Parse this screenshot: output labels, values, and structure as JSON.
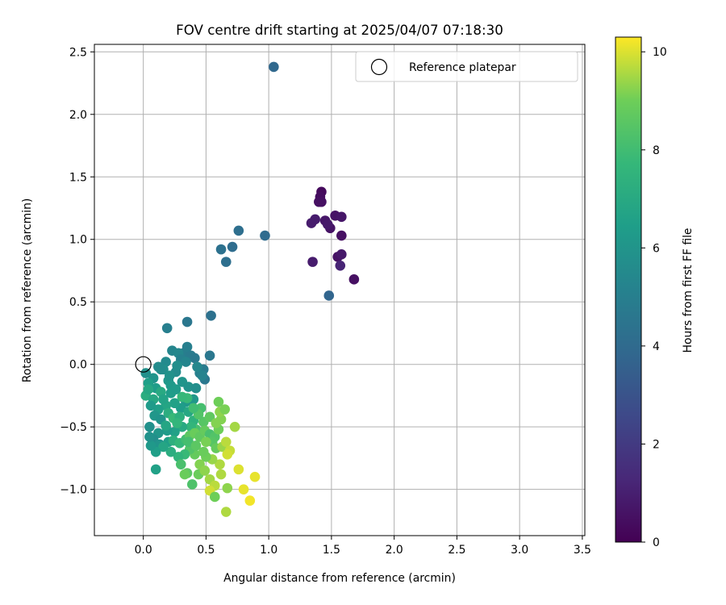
{
  "chart_data": {
    "type": "scatter",
    "title": "FOV centre drift starting at 2025/04/07 07:18:30",
    "xlabel": "Angular distance from reference (arcmin)",
    "ylabel": "Rotation from reference (arcmin)",
    "xlim": [
      -0.39,
      3.52
    ],
    "ylim": [
      -1.37,
      2.56
    ],
    "xticks": [
      0.0,
      0.5,
      1.0,
      1.5,
      2.0,
      2.5,
      3.0,
      3.5
    ],
    "xtick_labels": [
      "0.0",
      "0.5",
      "1.0",
      "1.5",
      "2.0",
      "2.5",
      "3.0",
      "3.5"
    ],
    "yticks": [
      -1.0,
      -0.5,
      0.0,
      0.5,
      1.0,
      1.5,
      2.0,
      2.5
    ],
    "ytick_labels": [
      "−1.0",
      "−0.5",
      "0.0",
      "0.5",
      "1.0",
      "1.5",
      "2.0",
      "2.5"
    ],
    "grid": true,
    "legend": {
      "placement": "top-right",
      "entries": [
        "Reference platepar"
      ]
    },
    "reference_point": {
      "x": 0.0,
      "y": 0.0
    },
    "colorbar": {
      "label": "Hours from first FF file",
      "min": 0,
      "max": 10.3,
      "colormap": "viridis",
      "ticks": [
        0,
        2,
        4,
        6,
        8,
        10
      ],
      "tick_labels": [
        "0",
        "2",
        "4",
        "6",
        "8",
        "10"
      ]
    },
    "points": [
      [
        1.42,
        1.38,
        0.3
      ],
      [
        1.41,
        1.34,
        0.4
      ],
      [
        1.4,
        1.3,
        0.5
      ],
      [
        1.42,
        1.3,
        0.5
      ],
      [
        1.53,
        1.19,
        0.6
      ],
      [
        1.58,
        1.18,
        0.7
      ],
      [
        1.37,
        1.16,
        0.9
      ],
      [
        1.34,
        1.13,
        0.9
      ],
      [
        1.45,
        1.15,
        0.7
      ],
      [
        1.49,
        1.09,
        0.6
      ],
      [
        1.47,
        1.12,
        0.8
      ],
      [
        1.58,
        1.03,
        0.5
      ],
      [
        1.55,
        0.86,
        0.6
      ],
      [
        1.58,
        0.88,
        0.8
      ],
      [
        1.57,
        0.79,
        1.2
      ],
      [
        1.35,
        0.82,
        0.9
      ],
      [
        1.68,
        0.68,
        0.5
      ],
      [
        1.48,
        0.55,
        3.8
      ],
      [
        1.04,
        2.38,
        3.9
      ],
      [
        0.97,
        1.03,
        4.0
      ],
      [
        0.76,
        1.07,
        4.2
      ],
      [
        0.71,
        0.94,
        4.1
      ],
      [
        0.62,
        0.92,
        4.3
      ],
      [
        0.66,
        0.82,
        4.2
      ],
      [
        0.54,
        0.39,
        4.3
      ],
      [
        0.35,
        0.34,
        4.6
      ],
      [
        0.19,
        0.29,
        5.0
      ],
      [
        0.53,
        0.07,
        4.6
      ],
      [
        0.32,
        0.09,
        4.9
      ],
      [
        0.35,
        0.14,
        5.0
      ],
      [
        0.23,
        0.11,
        5.3
      ],
      [
        0.28,
        0.09,
        5.4
      ],
      [
        0.38,
        0.07,
        4.8
      ],
      [
        0.41,
        0.05,
        4.7
      ],
      [
        0.48,
        -0.04,
        4.8
      ],
      [
        0.49,
        -0.12,
        4.6
      ],
      [
        0.45,
        -0.07,
        5.0
      ],
      [
        0.3,
        0.04,
        5.1
      ],
      [
        0.18,
        0.02,
        5.5
      ],
      [
        0.12,
        -0.02,
        5.6
      ],
      [
        0.16,
        -0.04,
        5.8
      ],
      [
        0.08,
        -0.11,
        6.0
      ],
      [
        0.02,
        -0.07,
        5.8
      ],
      [
        0.04,
        -0.15,
        6.5
      ],
      [
        0.1,
        -0.19,
        6.4
      ],
      [
        0.02,
        -0.25,
        7.2
      ],
      [
        0.08,
        -0.28,
        6.9
      ],
      [
        0.14,
        -0.22,
        7.0
      ],
      [
        0.2,
        -0.13,
        6.1
      ],
      [
        0.26,
        -0.06,
        5.6
      ],
      [
        0.22,
        -0.17,
        6.2
      ],
      [
        0.31,
        -0.14,
        6.0
      ],
      [
        0.36,
        -0.18,
        5.9
      ],
      [
        0.42,
        -0.19,
        5.7
      ],
      [
        0.4,
        -0.28,
        6.1
      ],
      [
        0.34,
        -0.3,
        6.2
      ],
      [
        0.3,
        -0.35,
        6.4
      ],
      [
        0.25,
        -0.31,
        6.6
      ],
      [
        0.18,
        -0.33,
        6.8
      ],
      [
        0.12,
        -0.36,
        6.5
      ],
      [
        0.06,
        -0.33,
        6.3
      ],
      [
        0.09,
        -0.41,
        6.1
      ],
      [
        0.14,
        -0.44,
        6.0
      ],
      [
        0.2,
        -0.39,
        7.2
      ],
      [
        0.24,
        -0.43,
        7.8
      ],
      [
        0.29,
        -0.42,
        7.3
      ],
      [
        0.36,
        -0.38,
        6.9
      ],
      [
        0.4,
        -0.45,
        7.4
      ],
      [
        0.46,
        -0.35,
        8.1
      ],
      [
        0.35,
        -0.27,
        7.8
      ],
      [
        0.48,
        -0.46,
        8.5
      ],
      [
        0.42,
        -0.52,
        8.2
      ],
      [
        0.38,
        -0.5,
        7.6
      ],
      [
        0.31,
        -0.5,
        7.0
      ],
      [
        0.25,
        -0.54,
        6.6
      ],
      [
        0.19,
        -0.53,
        6.3
      ],
      [
        0.12,
        -0.55,
        6.1
      ],
      [
        0.05,
        -0.5,
        5.8
      ],
      [
        0.08,
        -0.6,
        5.7
      ],
      [
        0.13,
        -0.64,
        6.0
      ],
      [
        0.2,
        -0.62,
        6.5
      ],
      [
        0.24,
        -0.61,
        7.3
      ],
      [
        0.29,
        -0.63,
        7.7
      ],
      [
        0.34,
        -0.6,
        8.0
      ],
      [
        0.37,
        -0.57,
        8.6
      ],
      [
        0.41,
        -0.55,
        8.9
      ],
      [
        0.45,
        -0.58,
        8.7
      ],
      [
        0.49,
        -0.53,
        8.8
      ],
      [
        0.53,
        -0.56,
        8.2
      ],
      [
        0.57,
        -0.58,
        8.4
      ],
      [
        0.6,
        -0.52,
        9.0
      ],
      [
        0.62,
        -0.44,
        9.2
      ],
      [
        0.61,
        -0.38,
        9.3
      ],
      [
        0.6,
        -0.3,
        9.0
      ],
      [
        0.65,
        -0.36,
        9.1
      ],
      [
        0.53,
        -0.42,
        8.7
      ],
      [
        0.55,
        -0.62,
        8.5
      ],
      [
        0.58,
        -0.67,
        8.8
      ],
      [
        0.63,
        -0.66,
        9.4
      ],
      [
        0.66,
        -0.62,
        9.7
      ],
      [
        0.69,
        -0.69,
        9.8
      ],
      [
        0.73,
        -0.5,
        9.5
      ],
      [
        0.67,
        -0.72,
        9.9
      ],
      [
        0.61,
        -0.8,
        9.6
      ],
      [
        0.55,
        -0.76,
        9.4
      ],
      [
        0.5,
        -0.74,
        9.0
      ],
      [
        0.45,
        -0.8,
        9.2
      ],
      [
        0.41,
        -0.72,
        8.8
      ],
      [
        0.37,
        -0.68,
        8.4
      ],
      [
        0.33,
        -0.72,
        7.8
      ],
      [
        0.28,
        -0.74,
        7.5
      ],
      [
        0.22,
        -0.7,
        7.2
      ],
      [
        0.16,
        -0.66,
        6.8
      ],
      [
        0.1,
        -0.7,
        6.5
      ],
      [
        0.06,
        -0.65,
        6.2
      ],
      [
        0.1,
        -0.84,
        6.6
      ],
      [
        0.3,
        -0.8,
        8.2
      ],
      [
        0.35,
        -0.87,
        8.6
      ],
      [
        0.39,
        -0.96,
        8.3
      ],
      [
        0.44,
        -0.88,
        8.9
      ],
      [
        0.49,
        -0.85,
        9.3
      ],
      [
        0.53,
        -0.92,
        9.5
      ],
      [
        0.57,
        -0.97,
        9.7
      ],
      [
        0.53,
        -1.01,
        9.9
      ],
      [
        0.57,
        -1.06,
        9.0
      ],
      [
        0.62,
        -0.88,
        9.6
      ],
      [
        0.67,
        -0.99,
        9.3
      ],
      [
        0.76,
        -0.84,
        10.0
      ],
      [
        0.8,
        -1.0,
        10.1
      ],
      [
        0.85,
        -1.09,
        10.2
      ],
      [
        0.89,
        -0.9,
        10.1
      ],
      [
        0.66,
        -1.18,
        9.6
      ],
      [
        0.33,
        -0.88,
        8.9
      ],
      [
        0.36,
        -0.62,
        8.1
      ],
      [
        0.27,
        -0.47,
        7.6
      ],
      [
        0.16,
        -0.28,
        6.7
      ],
      [
        0.04,
        -0.2,
        6.9
      ],
      [
        0.22,
        -0.23,
        6.4
      ],
      [
        0.44,
        -0.4,
        8.4
      ],
      [
        0.5,
        -0.62,
        9.1
      ],
      [
        0.58,
        -0.47,
        9.2
      ],
      [
        0.31,
        -0.26,
        7.7
      ],
      [
        0.26,
        -0.2,
        6.3
      ],
      [
        0.4,
        -0.35,
        8.0
      ],
      [
        0.14,
        -0.04,
        5.6
      ],
      [
        0.21,
        -0.09,
        5.9
      ],
      [
        0.34,
        0.02,
        5.3
      ],
      [
        0.43,
        -0.02,
        5.4
      ],
      [
        0.47,
        -0.09,
        5.2
      ],
      [
        0.27,
        -0.01,
        5.7
      ],
      [
        0.18,
        -0.49,
        6.8
      ],
      [
        0.42,
        -0.65,
        8.6
      ],
      [
        0.48,
        -0.7,
        8.9
      ],
      [
        0.05,
        -0.58,
        5.9
      ]
    ]
  }
}
